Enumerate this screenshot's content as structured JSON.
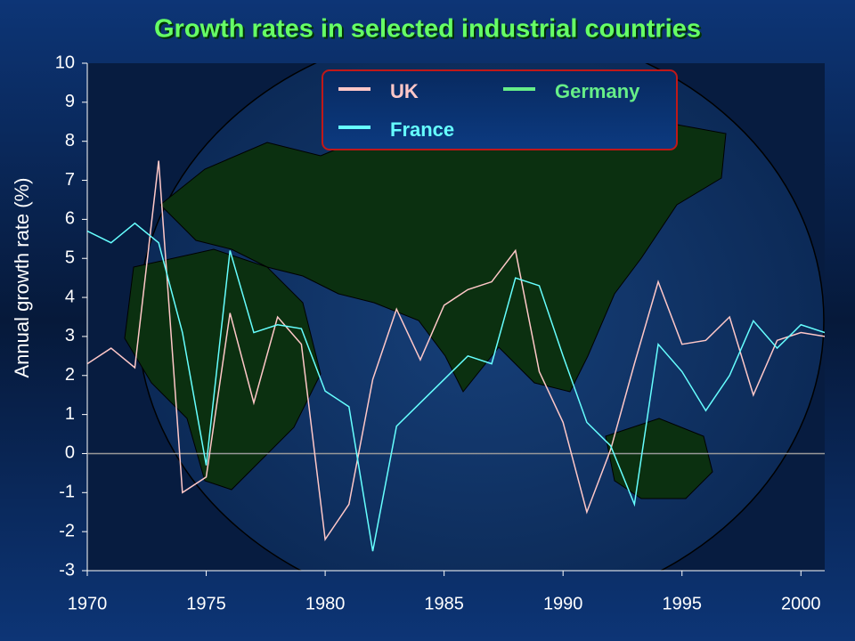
{
  "chart_data": {
    "type": "line",
    "title": "Growth rates in selected industrial countries",
    "y_label": "Annual growth rate (%)",
    "x": [
      1970,
      1971,
      1972,
      1973,
      1974,
      1975,
      1976,
      1977,
      1978,
      1979,
      1980,
      1981,
      1982,
      1983,
      1984,
      1985,
      1986,
      1987,
      1988,
      1989,
      1990,
      1991,
      1992,
      1993,
      1994,
      1995,
      1996,
      1997,
      1998,
      1999,
      2000,
      2001
    ],
    "series": [
      {
        "name": "UK",
        "color": "#ffc8c8",
        "values": [
          2.3,
          2.7,
          2.2,
          7.5,
          -1.0,
          -0.6,
          3.6,
          1.3,
          3.5,
          2.8,
          -2.2,
          -1.3,
          1.9,
          3.7,
          2.4,
          3.8,
          4.2,
          4.4,
          5.2,
          2.1,
          0.8,
          -1.5,
          0.1,
          2.3,
          4.4,
          2.8,
          2.9,
          3.5,
          1.5,
          2.9,
          3.1,
          3.0
        ]
      },
      {
        "name": "France",
        "color": "#66ffff",
        "values": [
          5.7,
          5.4,
          5.9,
          5.4,
          3.1,
          -0.3,
          5.2,
          3.1,
          3.3,
          3.2,
          1.6,
          1.2,
          -2.5,
          0.7,
          1.3,
          1.9,
          2.5,
          2.3,
          4.5,
          4.3,
          2.5,
          0.8,
          0.2,
          -1.3,
          2.8,
          2.1,
          1.1,
          2.0,
          3.4,
          2.7,
          3.3,
          3.1
        ]
      },
      {
        "name": "Germany",
        "color": "#66ee88",
        "values": [
          null,
          null,
          null,
          null,
          null,
          null,
          null,
          null,
          null,
          null,
          null,
          null,
          null,
          null,
          null,
          null,
          null,
          null,
          null,
          null,
          null,
          null,
          null,
          null,
          null,
          null,
          null,
          null,
          null,
          null,
          null,
          null
        ]
      }
    ],
    "xlim": [
      1970,
      2001
    ],
    "xticks": [
      1970,
      1975,
      1980,
      1985,
      1990,
      1995,
      2000
    ],
    "ylim": [
      -3,
      10
    ],
    "yticks": [
      -3,
      -2,
      -1,
      0,
      1,
      2,
      3,
      4,
      5,
      6,
      7,
      8,
      9,
      10
    ],
    "zero_line": true
  }
}
